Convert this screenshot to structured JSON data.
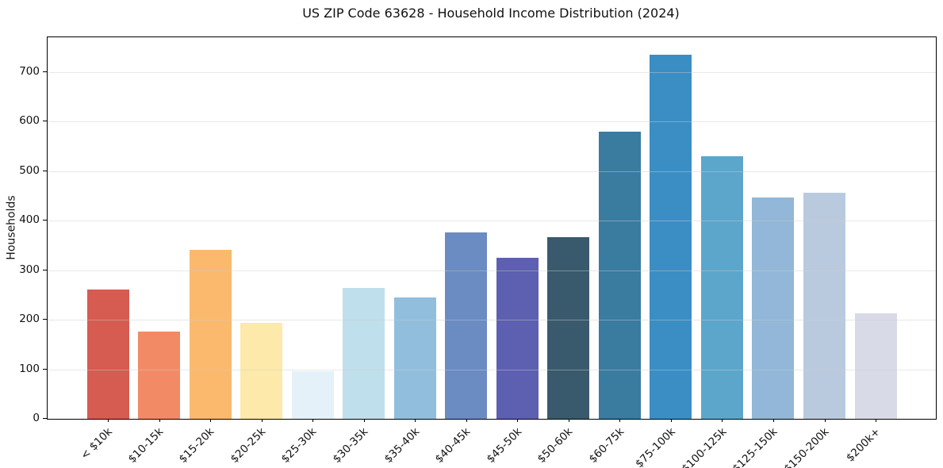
{
  "chart_data": {
    "type": "bar",
    "title": "US ZIP Code 63628 - Household Income Distribution (2024)",
    "xlabel": "",
    "ylabel": "Households",
    "categories": [
      "< $10k",
      "$10-15k",
      "$15-20k",
      "$20-25k",
      "$25-30k",
      "$30-35k",
      "$35-40k",
      "$40-45k",
      "$45-50k",
      "$50-60k",
      "$60-75k",
      "$75-100k",
      "$100-125k",
      "$125-150k",
      "$150-200k",
      "$200k+"
    ],
    "values": [
      261,
      176,
      341,
      194,
      96,
      264,
      245,
      376,
      325,
      366,
      580,
      735,
      530,
      447,
      456,
      213
    ],
    "bar_colors": [
      "#d65b51",
      "#f38a66",
      "#fbb96e",
      "#fde9a9",
      "#e4f1f8",
      "#c0dfec",
      "#91bedd",
      "#6b8bc3",
      "#5d60b0",
      "#395a6c",
      "#3a7ba0",
      "#3a8ec4",
      "#5ca6cb",
      "#92b7d8",
      "#b9cade",
      "#d8dae8"
    ],
    "yticks": [
      0,
      100,
      200,
      300,
      400,
      500,
      600,
      700
    ],
    "ylim": [
      0,
      770
    ],
    "grid": true,
    "legend": "none",
    "x_tick_rotation_deg": 45,
    "background_color": "#ffffff",
    "axis_color": "#000000"
  }
}
